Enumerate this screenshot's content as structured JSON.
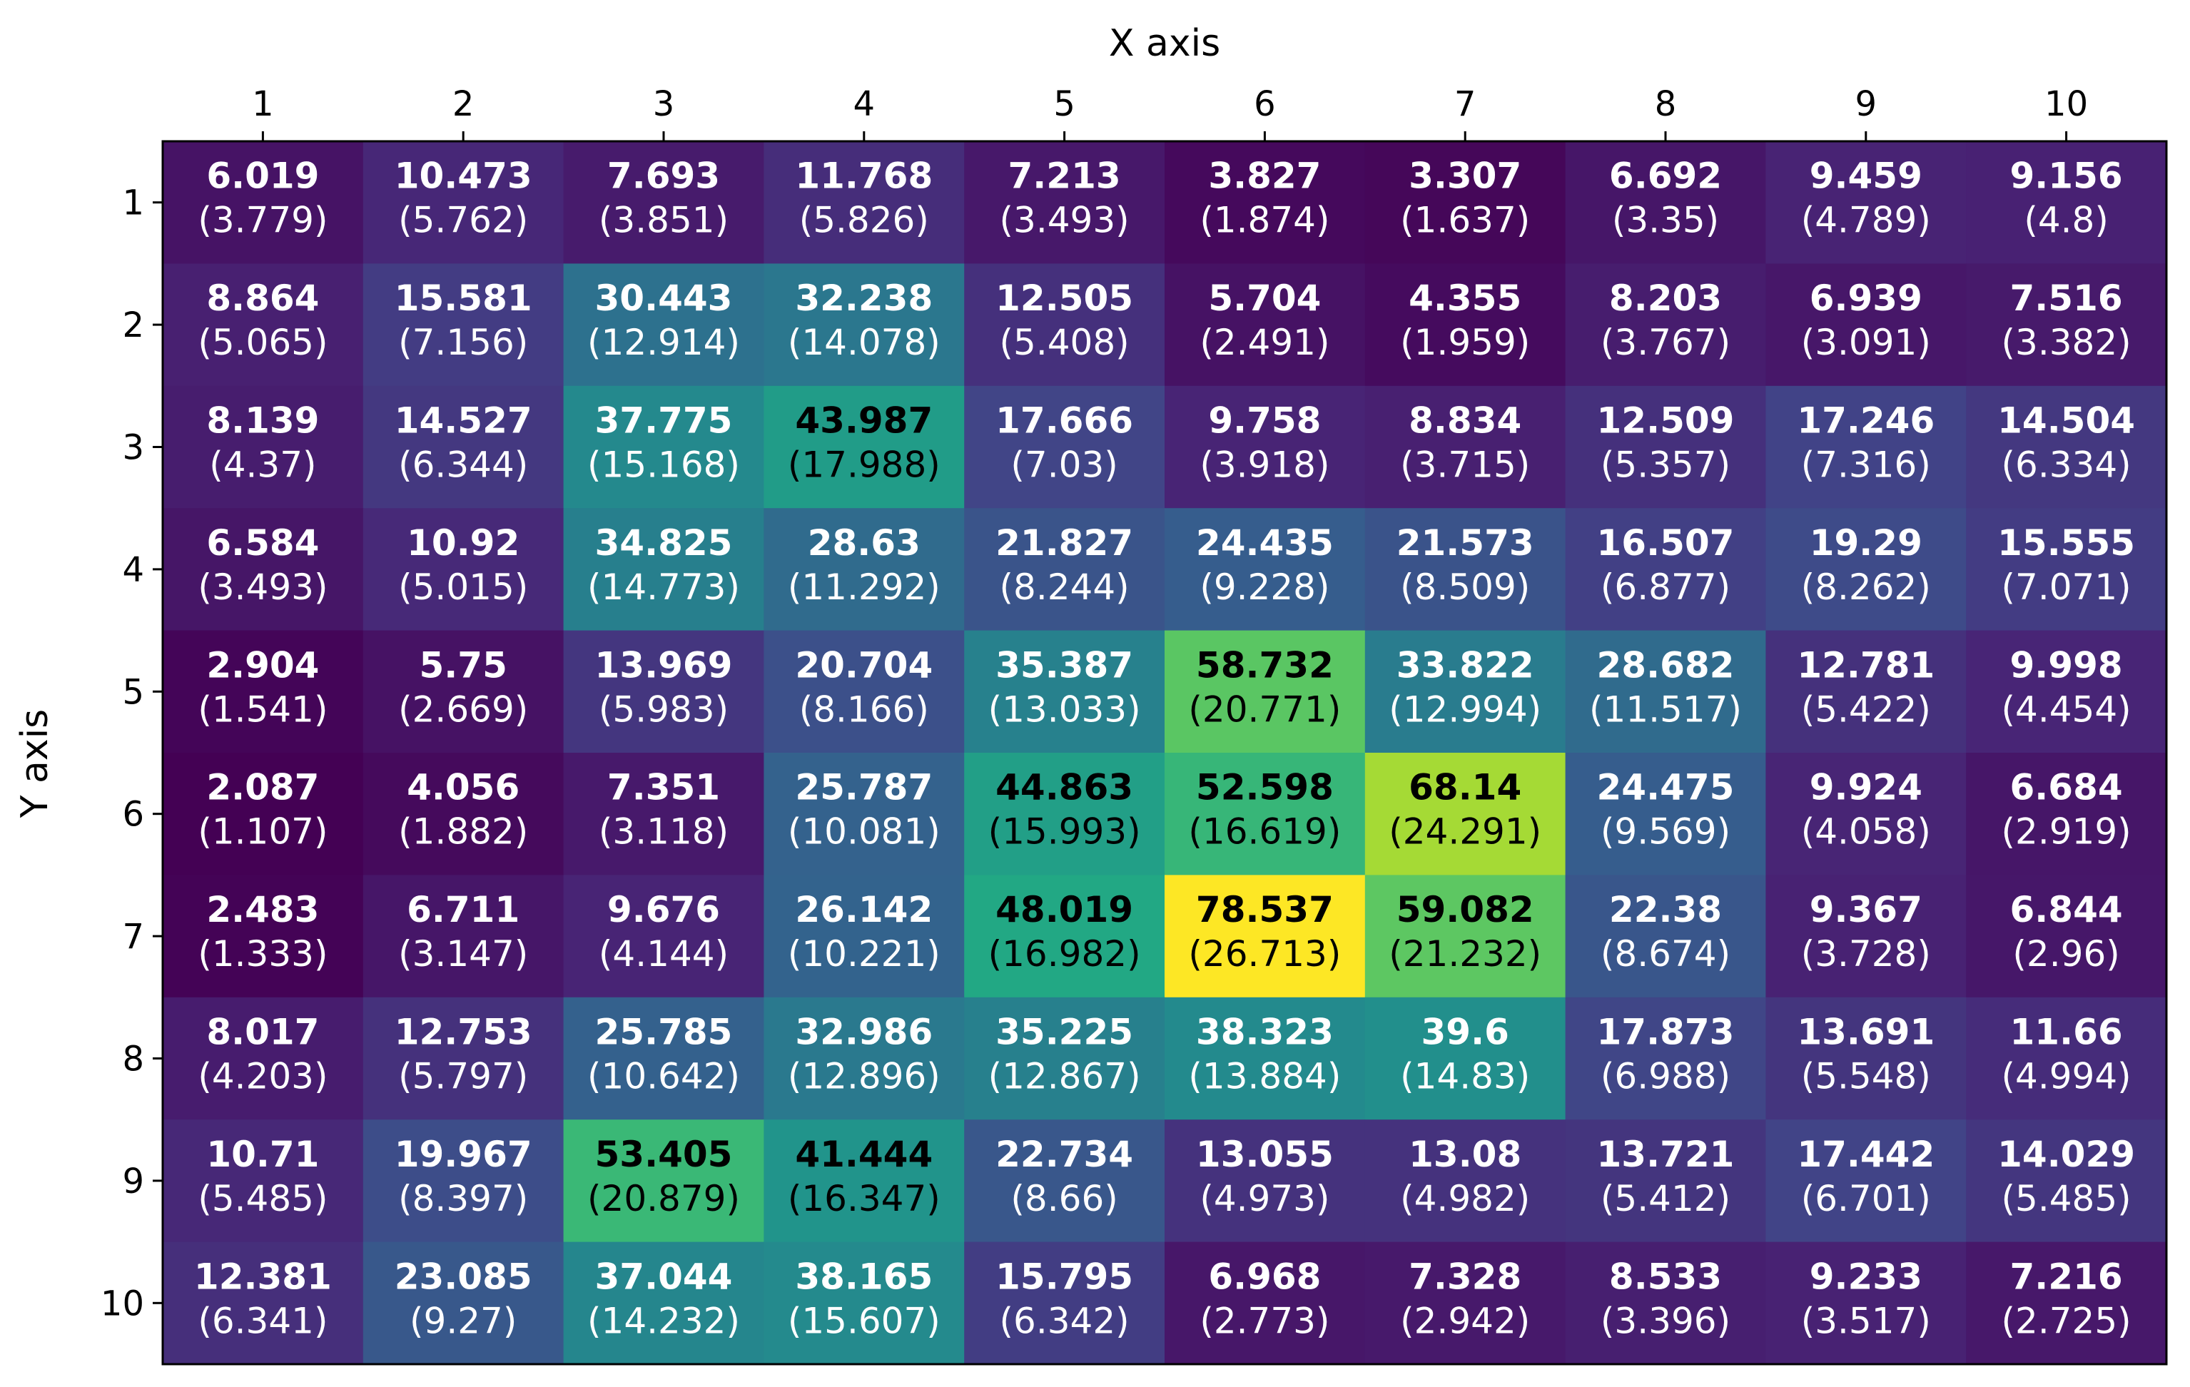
{
  "chart_data": {
    "type": "heatmap",
    "title": "",
    "xlabel": "X axis",
    "ylabel": "Y axis",
    "x_ticks": [
      "1",
      "2",
      "3",
      "4",
      "5",
      "6",
      "7",
      "8",
      "9",
      "10"
    ],
    "y_ticks": [
      "1",
      "2",
      "3",
      "4",
      "5",
      "6",
      "7",
      "8",
      "9",
      "10"
    ],
    "x_axis_position": "top",
    "colormap": "viridis",
    "grid": false,
    "values": [
      [
        6.019,
        10.473,
        7.693,
        11.768,
        7.213,
        3.827,
        3.307,
        6.692,
        9.459,
        9.156
      ],
      [
        8.864,
        15.581,
        30.443,
        32.238,
        12.505,
        5.704,
        4.355,
        8.203,
        6.939,
        7.516
      ],
      [
        8.139,
        14.527,
        37.775,
        43.987,
        17.666,
        9.758,
        8.834,
        12.509,
        17.246,
        14.504
      ],
      [
        6.584,
        10.92,
        34.825,
        28.63,
        21.827,
        24.435,
        21.573,
        16.507,
        19.29,
        15.555
      ],
      [
        2.904,
        5.75,
        13.969,
        20.704,
        35.387,
        58.732,
        33.822,
        28.682,
        12.781,
        9.998
      ],
      [
        2.087,
        4.056,
        7.351,
        25.787,
        44.863,
        52.598,
        68.14,
        24.475,
        9.924,
        6.684
      ],
      [
        2.483,
        6.711,
        9.676,
        26.142,
        48.019,
        78.537,
        59.082,
        22.38,
        9.367,
        6.844
      ],
      [
        8.017,
        12.753,
        25.785,
        32.986,
        35.225,
        38.323,
        39.6,
        17.873,
        13.691,
        11.66
      ],
      [
        10.71,
        19.967,
        53.405,
        41.444,
        22.734,
        13.055,
        13.08,
        13.721,
        17.442,
        14.029
      ],
      [
        12.381,
        23.085,
        37.044,
        38.165,
        15.795,
        6.968,
        7.328,
        8.533,
        9.233,
        7.216
      ]
    ],
    "secondary_values": [
      [
        "3.779",
        "5.762",
        "3.851",
        "5.826",
        "3.493",
        "1.874",
        "1.637",
        "3.35",
        "4.789",
        "4.8"
      ],
      [
        "5.065",
        "7.156",
        "12.914",
        "14.078",
        "5.408",
        "2.491",
        "1.959",
        "3.767",
        "3.091",
        "3.382"
      ],
      [
        "4.37",
        "6.344",
        "15.168",
        "17.988",
        "7.03",
        "3.918",
        "3.715",
        "5.357",
        "7.316",
        "6.334"
      ],
      [
        "3.493",
        "5.015",
        "14.773",
        "11.292",
        "8.244",
        "9.228",
        "8.509",
        "6.877",
        "8.262",
        "7.071"
      ],
      [
        "1.541",
        "2.669",
        "5.983",
        "8.166",
        "13.033",
        "20.771",
        "12.994",
        "11.517",
        "5.422",
        "4.454"
      ],
      [
        "1.107",
        "1.882",
        "3.118",
        "10.081",
        "15.993",
        "16.619",
        "24.291",
        "9.569",
        "4.058",
        "2.919"
      ],
      [
        "1.333",
        "3.147",
        "4.144",
        "10.221",
        "16.982",
        "26.713",
        "21.232",
        "8.674",
        "3.728",
        "2.96"
      ],
      [
        "4.203",
        "5.797",
        "10.642",
        "12.896",
        "12.867",
        "13.884",
        "14.83",
        "6.988",
        "5.548",
        "4.994"
      ],
      [
        "5.485",
        "8.397",
        "20.879",
        "16.347",
        "8.66",
        "4.973",
        "4.982",
        "5.412",
        "6.701",
        "5.485"
      ],
      [
        "6.341",
        "9.27",
        "14.232",
        "15.607",
        "6.342",
        "2.773",
        "2.942",
        "3.396",
        "3.517",
        "2.725"
      ]
    ],
    "vmin": 2.087,
    "vmax": 78.537,
    "text_colors": {
      "light": "#ffffff",
      "dark": "#000000"
    },
    "axis_color": "#000000"
  }
}
